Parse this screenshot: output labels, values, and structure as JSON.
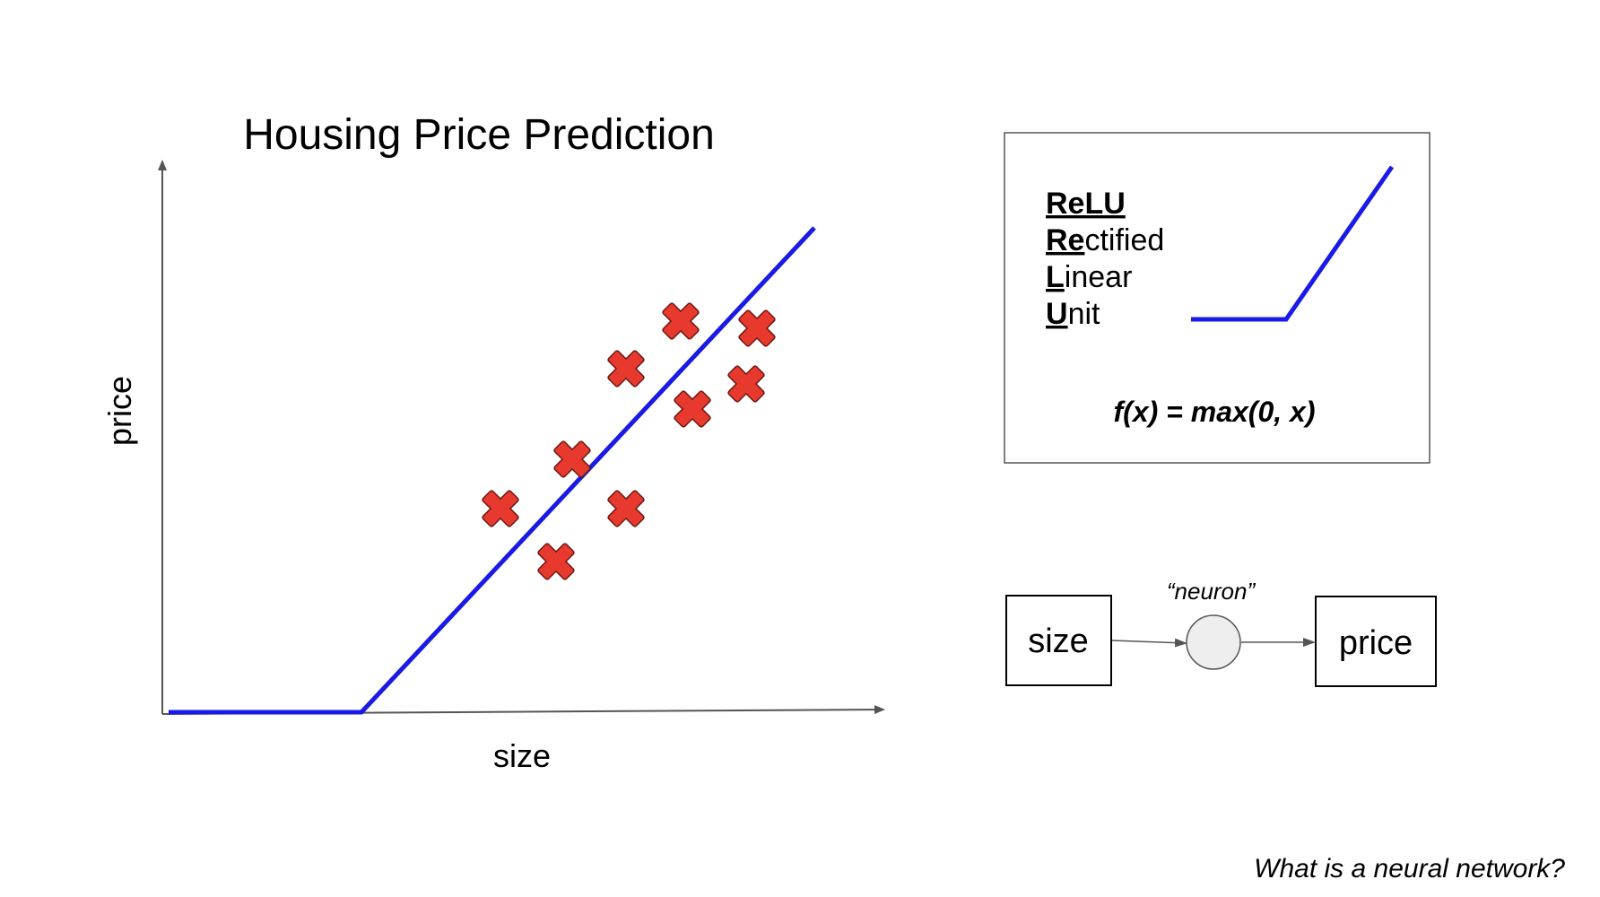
{
  "chart": {
    "title": "Housing Price Prediction",
    "xlabel": "size",
    "ylabel": "price"
  },
  "chart_data": {
    "type": "scatter",
    "title": "Housing Price Prediction",
    "xlabel": "size",
    "ylabel": "price",
    "points": [
      {
        "x": 370,
        "y": 227
      },
      {
        "x": 432,
        "y": 168
      },
      {
        "x": 450,
        "y": 282
      },
      {
        "x": 510,
        "y": 227
      },
      {
        "x": 510,
        "y": 383
      },
      {
        "x": 571,
        "y": 436
      },
      {
        "x": 584,
        "y": 338
      },
      {
        "x": 644,
        "y": 366
      },
      {
        "x": 656,
        "y": 428
      }
    ],
    "fit_line": [
      {
        "x": 0,
        "y": 0
      },
      {
        "x": 215,
        "y": 0
      },
      {
        "x": 720,
        "y": 540
      }
    ],
    "point_marker": "x-mark",
    "colors": {
      "points": "#e8392e",
      "line": "#1a1ae6",
      "axes": "#555555"
    }
  },
  "relu_box": {
    "lines": [
      {
        "bold": "ReLU",
        "rest": ""
      },
      {
        "bold": "Re",
        "rest": "ctified"
      },
      {
        "bold": "L",
        "rest": "inear"
      },
      {
        "bold": "U",
        "rest": "nit"
      }
    ],
    "formula": "f(x) = max(0, x)"
  },
  "neuron_diagram": {
    "input_label": "size",
    "neuron_label": "“neuron”",
    "output_label": "price"
  },
  "footer": {
    "caption": "What is a neural network?"
  },
  "colors": {
    "accent_blue": "#1a1ae6",
    "mark_red": "#e8392e",
    "neuron_fill": "#eeeeee"
  }
}
